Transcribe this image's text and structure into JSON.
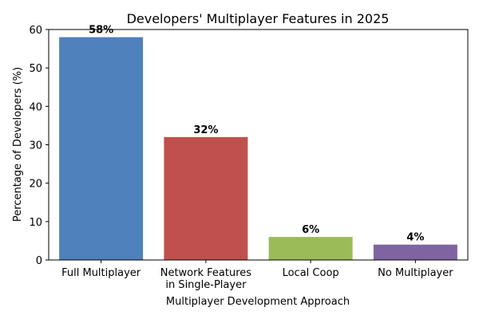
{
  "chart_data": {
    "type": "bar",
    "title": "Developers' Multiplayer Features in 2025",
    "xlabel": "Multiplayer Development Approach",
    "ylabel": "Percentage of Developers (%)",
    "ylim": [
      0,
      60
    ],
    "yticks": [
      0,
      10,
      20,
      30,
      40,
      50,
      60
    ],
    "grid": false,
    "categories": [
      [
        "Full Multiplayer"
      ],
      [
        "Network Features",
        "in Single-Player"
      ],
      [
        "Local Coop"
      ],
      [
        "No Multiplayer"
      ]
    ],
    "values": [
      58,
      32,
      6,
      4
    ],
    "data_labels": [
      "58%",
      "32%",
      "6%",
      "4%"
    ],
    "colors": [
      "#4f81bd",
      "#c0504d",
      "#9bbb59",
      "#8064a2"
    ]
  }
}
